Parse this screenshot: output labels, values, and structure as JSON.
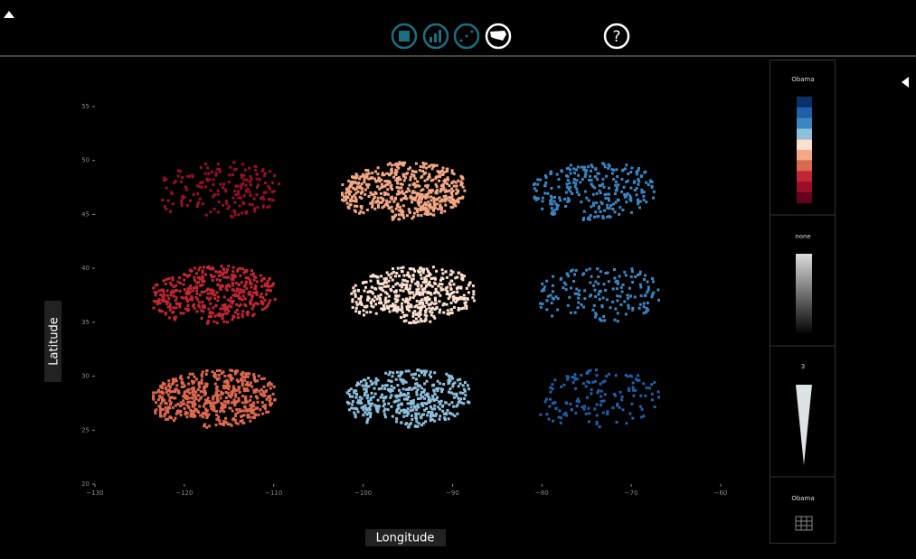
{
  "toolbar": {
    "help": "?"
  },
  "chart": {
    "x_label": "Longitude",
    "y_label": "Latitude",
    "xlim": [
      -130,
      -60
    ],
    "xticks": [
      {
        "value": -130,
        "label": "−130"
      },
      {
        "value": -120,
        "label": "−120"
      },
      {
        "value": -110,
        "label": "−110"
      },
      {
        "value": -100,
        "label": "−100"
      },
      {
        "value": -90,
        "label": "−90"
      },
      {
        "value": -80,
        "label": "−80"
      },
      {
        "value": -70,
        "label": "−70"
      },
      {
        "value": -60,
        "label": "−60"
      }
    ],
    "ylim": [
      20,
      55
    ],
    "yticks": [
      20,
      25,
      30,
      35,
      40,
      45,
      50,
      55
    ]
  },
  "side_panel": {
    "color_title": "Obama",
    "color_scale": [
      "#08306b",
      "#1f60a8",
      "#3b86c2",
      "#8ec0dd",
      "#fbe0d0",
      "#f4a886",
      "#dc6850",
      "#c02633",
      "#9a0e27",
      "#67001f"
    ],
    "opacity_title": "none",
    "size_title": "3",
    "facet_title": "Obama"
  }
}
